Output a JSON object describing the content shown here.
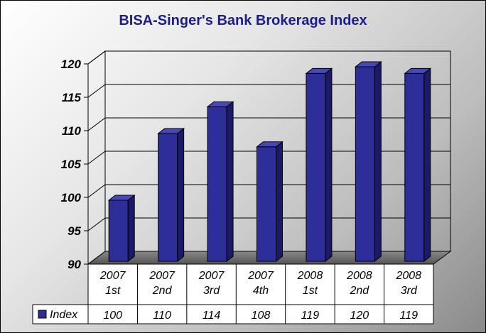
{
  "chart_data": {
    "type": "bar",
    "title": "BISA-Singer's Bank Brokerage Index",
    "categories": [
      [
        "2007",
        "1st"
      ],
      [
        "2007",
        "2nd"
      ],
      [
        "2007",
        "3rd"
      ],
      [
        "2007",
        "4th"
      ],
      [
        "2008",
        "1st"
      ],
      [
        "2008",
        "2nd"
      ],
      [
        "2008",
        "3rd"
      ]
    ],
    "series": [
      {
        "name": "Index",
        "values": [
          100,
          110,
          114,
          108,
          119,
          120,
          119
        ]
      }
    ],
    "y_ticks": [
      "90",
      "95",
      "100",
      "105",
      "110",
      "115",
      "120"
    ],
    "ylim": [
      90,
      120
    ],
    "grid": true,
    "legend": "data-table-left",
    "bar_color": "#2e2e9a"
  }
}
